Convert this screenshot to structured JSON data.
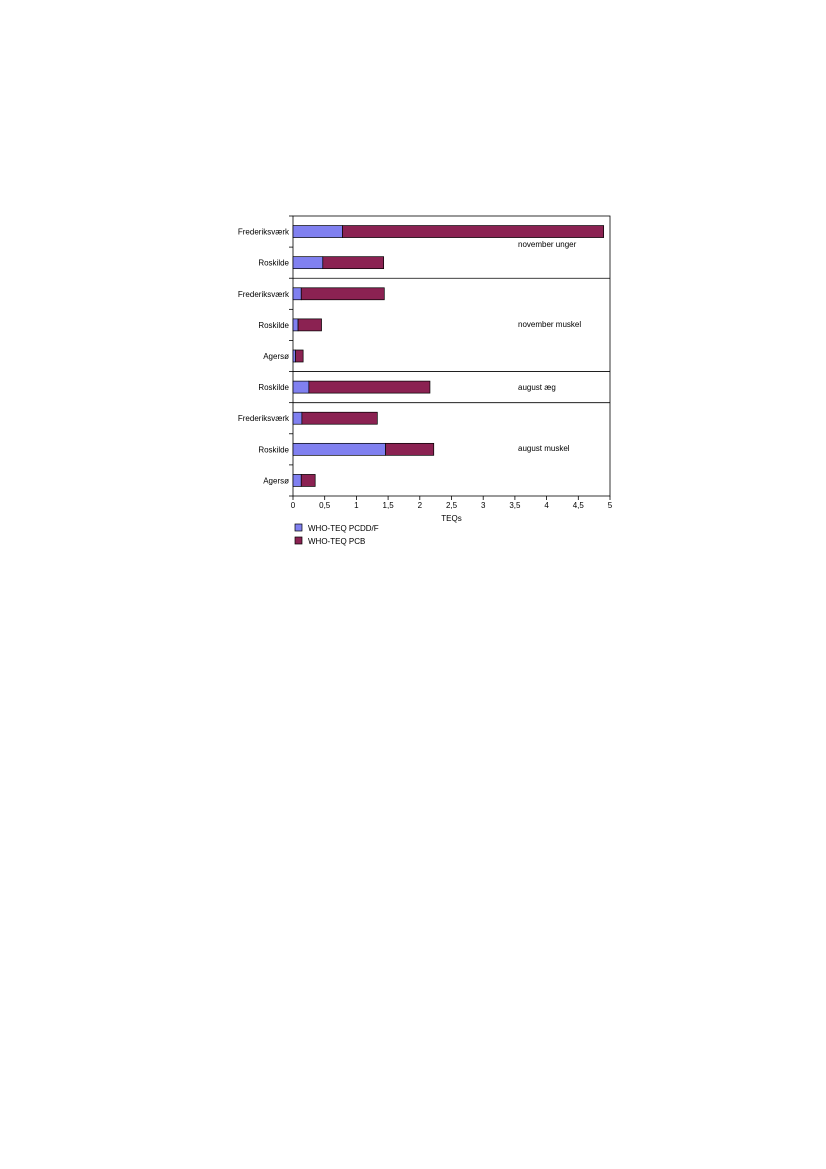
{
  "chart_data": {
    "type": "bar",
    "orientation": "horizontal",
    "stacked": true,
    "categories": [
      "Frederiksværk",
      "Roskilde",
      "Frederiksværk",
      "Roskilde",
      "Agersø",
      "Roskilde",
      "Frederiksværk",
      "Roskilde",
      "Agersø"
    ],
    "series": [
      {
        "name": "WHO-TEQ PCDD/F",
        "color": "#8080f0",
        "values": [
          0.78,
          0.47,
          0.13,
          0.08,
          0.04,
          0.25,
          0.14,
          1.46,
          0.13
        ]
      },
      {
        "name": "WHO-TEQ PCB",
        "color": "#8b2252",
        "values": [
          4.12,
          0.96,
          1.31,
          0.37,
          0.12,
          1.91,
          1.19,
          0.76,
          0.22
        ]
      }
    ],
    "groups": [
      {
        "label": "november unger",
        "categories": [
          0,
          1
        ]
      },
      {
        "label": "november muskel",
        "categories": [
          2,
          3,
          4
        ]
      },
      {
        "label": "august æg",
        "categories": [
          5
        ]
      },
      {
        "label": "august muskel",
        "categories": [
          6,
          7,
          8
        ]
      }
    ],
    "xlabel": "TEQs",
    "xlim": [
      0,
      5
    ],
    "xticks": [
      0,
      0.5,
      1,
      1.5,
      2,
      2.5,
      3,
      3.5,
      4,
      4.5,
      5
    ],
    "xtick_labels": [
      "0",
      "0,5",
      "1",
      "1,5",
      "2",
      "2,5",
      "3",
      "3,5",
      "4",
      "4,5",
      "5"
    ],
    "grid": false,
    "legend_position": "bottom-left"
  }
}
